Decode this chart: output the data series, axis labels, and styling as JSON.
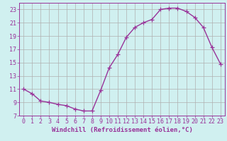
{
  "x": [
    0,
    1,
    2,
    3,
    4,
    5,
    6,
    7,
    8,
    9,
    10,
    11,
    12,
    13,
    14,
    15,
    16,
    17,
    18,
    19,
    20,
    21,
    22,
    23
  ],
  "y": [
    11.0,
    10.3,
    9.2,
    9.0,
    8.7,
    8.5,
    8.0,
    7.7,
    7.7,
    10.8,
    14.2,
    16.2,
    18.8,
    20.3,
    21.0,
    21.5,
    23.0,
    23.2,
    23.2,
    22.7,
    21.8,
    20.3,
    17.3,
    14.8
  ],
  "line_color": "#993399",
  "marker": "+",
  "marker_size": 4,
  "line_width": 1.0,
  "bg_color": "#d0f0f0",
  "grid_color": "#b0b0b0",
  "xlabel": "Windchill (Refroidissement éolien,°C)",
  "ylabel": "",
  "xlim": [
    -0.5,
    23.5
  ],
  "ylim": [
    7,
    24
  ],
  "yticks": [
    7,
    9,
    11,
    13,
    15,
    17,
    19,
    21,
    23
  ],
  "xticks": [
    0,
    1,
    2,
    3,
    4,
    5,
    6,
    7,
    8,
    9,
    10,
    11,
    12,
    13,
    14,
    15,
    16,
    17,
    18,
    19,
    20,
    21,
    22,
    23
  ],
  "tick_color": "#993399",
  "label_color": "#993399",
  "label_fontsize": 6.5,
  "tick_fontsize": 6.0
}
